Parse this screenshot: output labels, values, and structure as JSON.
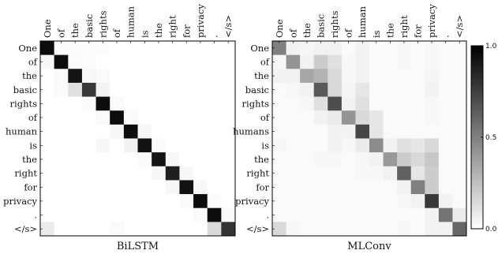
{
  "chart_data": [
    {
      "type": "heatmap",
      "title": "BiLSTM",
      "x_tick_labels": [
        "One",
        "of",
        "the",
        "basic",
        "rights",
        "of",
        "human",
        "is",
        "the",
        "right",
        "for",
        "privacy",
        ".",
        "</s>"
      ],
      "y_tick_labels": [
        "One",
        "of",
        "the",
        "basic",
        "rights",
        "of",
        "human",
        "is",
        "the",
        "right",
        "for",
        "privacy",
        ".",
        "</s>"
      ],
      "value_range": [
        0,
        1.0
      ],
      "colormap": "white-to-black",
      "values": [
        [
          0.95,
          0.02,
          0.01,
          0.01,
          0.01,
          0.0,
          0.0,
          0.0,
          0.0,
          0.0,
          0.0,
          0.0,
          0.0,
          0.0
        ],
        [
          0.03,
          0.95,
          0.02,
          0.01,
          0.0,
          0.0,
          0.0,
          0.0,
          0.0,
          0.0,
          0.0,
          0.0,
          0.0,
          0.0
        ],
        [
          0.0,
          0.02,
          0.92,
          0.03,
          0.02,
          0.0,
          0.0,
          0.0,
          0.0,
          0.0,
          0.0,
          0.0,
          0.0,
          0.0
        ],
        [
          0.0,
          0.02,
          0.12,
          0.78,
          0.05,
          0.0,
          0.0,
          0.0,
          0.0,
          0.0,
          0.0,
          0.0,
          0.0,
          0.0
        ],
        [
          0.0,
          0.0,
          0.0,
          0.02,
          0.95,
          0.02,
          0.0,
          0.0,
          0.0,
          0.0,
          0.0,
          0.0,
          0.0,
          0.0
        ],
        [
          0.0,
          0.0,
          0.0,
          0.0,
          0.02,
          0.95,
          0.02,
          0.0,
          0.0,
          0.0,
          0.0,
          0.0,
          0.0,
          0.0
        ],
        [
          0.0,
          0.0,
          0.0,
          0.0,
          0.0,
          0.03,
          0.95,
          0.03,
          0.0,
          0.0,
          0.0,
          0.0,
          0.0,
          0.0
        ],
        [
          0.0,
          0.0,
          0.0,
          0.0,
          0.03,
          0.0,
          0.05,
          0.93,
          0.02,
          0.0,
          0.0,
          0.0,
          0.0,
          0.0
        ],
        [
          0.0,
          0.0,
          0.0,
          0.0,
          0.0,
          0.0,
          0.0,
          0.02,
          0.92,
          0.03,
          0.0,
          0.0,
          0.0,
          0.0
        ],
        [
          0.0,
          0.0,
          0.0,
          0.0,
          0.0,
          0.0,
          0.0,
          0.0,
          0.03,
          0.88,
          0.03,
          0.0,
          0.0,
          0.0
        ],
        [
          0.0,
          0.0,
          0.0,
          0.0,
          0.0,
          0.0,
          0.0,
          0.0,
          0.0,
          0.03,
          0.93,
          0.03,
          0.0,
          0.0
        ],
        [
          0.0,
          0.0,
          0.0,
          0.0,
          0.0,
          0.0,
          0.0,
          0.0,
          0.0,
          0.0,
          0.02,
          0.95,
          0.02,
          0.0
        ],
        [
          0.0,
          0.0,
          0.0,
          0.0,
          0.0,
          0.0,
          0.0,
          0.0,
          0.0,
          0.0,
          0.0,
          0.02,
          0.95,
          0.02
        ],
        [
          0.08,
          0.0,
          0.0,
          0.0,
          0.0,
          0.02,
          0.0,
          0.0,
          0.0,
          0.0,
          0.0,
          0.0,
          0.15,
          0.8
        ]
      ]
    },
    {
      "type": "heatmap",
      "title": "MLConv",
      "x_tick_labels": [
        "One",
        "of",
        "the",
        "basic",
        "rights",
        "of",
        "human",
        "is",
        "the",
        "right",
        "for",
        "privacy",
        ".",
        "</s>"
      ],
      "y_tick_labels": [
        "One",
        "of",
        "the",
        "basic",
        "rights",
        "of",
        "humans",
        "is",
        "the",
        "right",
        "for",
        "privacy",
        ".",
        "</s>"
      ],
      "value_range": [
        0,
        1.0
      ],
      "colormap": "white-to-black",
      "colorbar_ticks": [
        "0.0",
        "0.5",
        "1.0"
      ],
      "values": [
        [
          0.5,
          0.05,
          0.04,
          0.05,
          0.05,
          0.02,
          0.05,
          0.02,
          0.02,
          0.03,
          0.02,
          0.03,
          0.02,
          0.02
        ],
        [
          0.03,
          0.42,
          0.05,
          0.2,
          0.12,
          0.03,
          0.05,
          0.02,
          0.02,
          0.03,
          0.02,
          0.03,
          0.02,
          0.02
        ],
        [
          0.05,
          0.05,
          0.35,
          0.3,
          0.15,
          0.03,
          0.05,
          0.02,
          0.02,
          0.02,
          0.02,
          0.04,
          0.02,
          0.02
        ],
        [
          0.02,
          0.03,
          0.05,
          0.65,
          0.15,
          0.04,
          0.1,
          0.02,
          0.02,
          0.02,
          0.02,
          0.05,
          0.02,
          0.02
        ],
        [
          0.02,
          0.02,
          0.03,
          0.12,
          0.7,
          0.05,
          0.12,
          0.02,
          0.02,
          0.02,
          0.02,
          0.03,
          0.02,
          0.02
        ],
        [
          0.02,
          0.02,
          0.02,
          0.05,
          0.08,
          0.42,
          0.15,
          0.1,
          0.02,
          0.02,
          0.02,
          0.03,
          0.02,
          0.02
        ],
        [
          0.02,
          0.02,
          0.02,
          0.02,
          0.05,
          0.05,
          0.72,
          0.1,
          0.02,
          0.02,
          0.02,
          0.02,
          0.02,
          0.02
        ],
        [
          0.03,
          0.02,
          0.02,
          0.02,
          0.05,
          0.03,
          0.08,
          0.45,
          0.05,
          0.12,
          0.1,
          0.15,
          0.02,
          0.02
        ],
        [
          0.02,
          0.02,
          0.02,
          0.03,
          0.03,
          0.02,
          0.03,
          0.05,
          0.4,
          0.2,
          0.15,
          0.22,
          0.02,
          0.02
        ],
        [
          0.02,
          0.02,
          0.02,
          0.02,
          0.02,
          0.02,
          0.03,
          0.03,
          0.05,
          0.62,
          0.1,
          0.2,
          0.02,
          0.02
        ],
        [
          0.02,
          0.02,
          0.02,
          0.02,
          0.02,
          0.02,
          0.02,
          0.02,
          0.02,
          0.05,
          0.5,
          0.2,
          0.02,
          0.02
        ],
        [
          0.02,
          0.02,
          0.02,
          0.02,
          0.02,
          0.02,
          0.02,
          0.02,
          0.02,
          0.03,
          0.05,
          0.78,
          0.05,
          0.02
        ],
        [
          0.02,
          0.02,
          0.02,
          0.02,
          0.02,
          0.02,
          0.02,
          0.02,
          0.02,
          0.02,
          0.02,
          0.05,
          0.55,
          0.08
        ],
        [
          0.15,
          0.03,
          0.02,
          0.02,
          0.02,
          0.02,
          0.02,
          0.02,
          0.02,
          0.03,
          0.02,
          0.05,
          0.05,
          0.6
        ]
      ]
    }
  ]
}
